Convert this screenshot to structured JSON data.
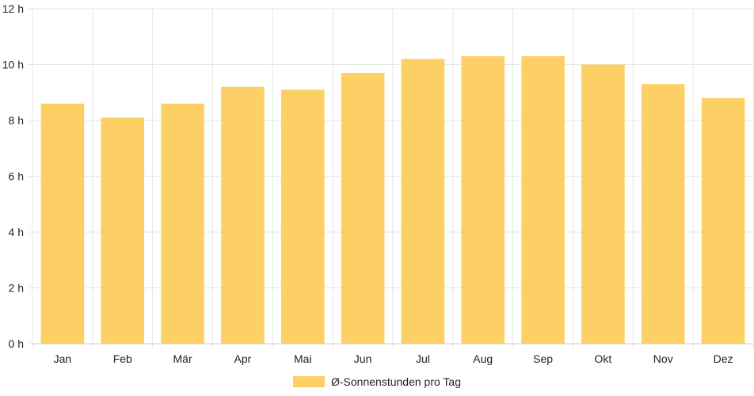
{
  "chart_data": {
    "type": "bar",
    "categories": [
      "Jan",
      "Feb",
      "Mär",
      "Apr",
      "Mai",
      "Jun",
      "Jul",
      "Aug",
      "Sep",
      "Okt",
      "Nov",
      "Dez"
    ],
    "series": [
      {
        "name": "Ø-Sonnenstunden pro Tag",
        "values": [
          8.6,
          8.1,
          8.6,
          9.2,
          9.1,
          9.7,
          10.2,
          10.3,
          10.3,
          10.0,
          9.3,
          8.8
        ],
        "color": "#fdd066"
      }
    ],
    "y_ticks": [
      "0 h",
      "2 h",
      "4 h",
      "6 h",
      "8 h",
      "10 h",
      "12 h"
    ],
    "ylim": [
      0,
      12
    ],
    "y_step": 2,
    "grid": true,
    "legend_position": "bottom",
    "grid_color": "#e6e6e6",
    "axis_color": "#cccccc"
  }
}
